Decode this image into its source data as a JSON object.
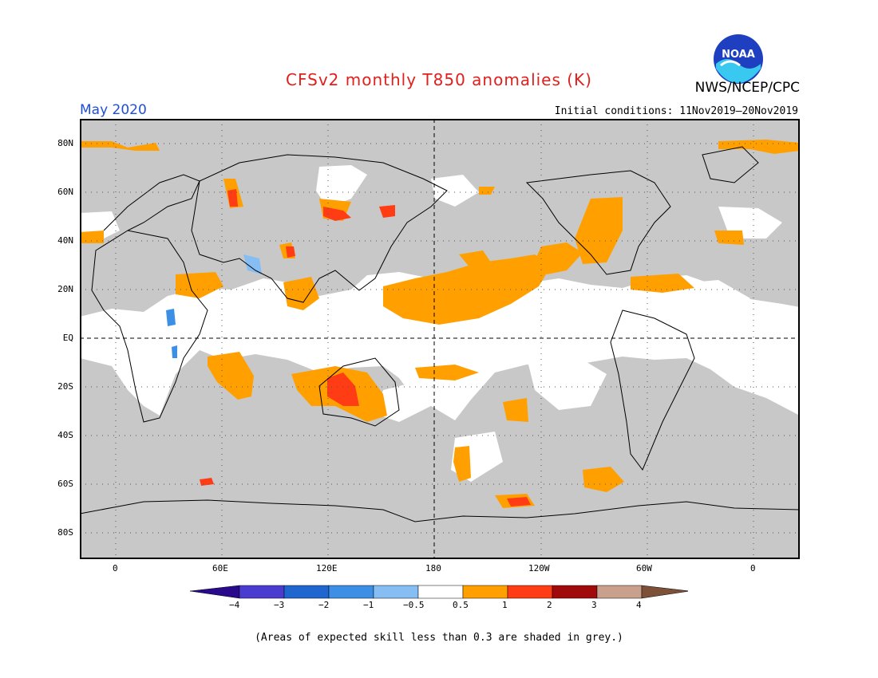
{
  "title": "CFSv2 monthly T850 anomalies (K)",
  "agency": "NWS/NCEP/CPC",
  "logo_text": "NOAA",
  "period": "May 2020",
  "initial_conditions": "Initial conditions: 11Nov2019—20Nov2019",
  "lat_labels": [
    "80N",
    "60N",
    "40N",
    "20N",
    "EQ",
    "20S",
    "40S",
    "60S",
    "80S"
  ],
  "lon_labels": [
    "0",
    "60E",
    "120E",
    "180",
    "120W",
    "60W",
    "0"
  ],
  "colorbar": {
    "labels": [
      "−4",
      "−3",
      "−2",
      "−1",
      "−0.5",
      "0.5",
      "1",
      "2",
      "3",
      "4"
    ],
    "colors": [
      "#2a0a8c",
      "#4a3ccf",
      "#1f66cf",
      "#3d8fe6",
      "#86bdf2",
      "#ffffff",
      "#ffa000",
      "#ff3c14",
      "#a00a0a",
      "#c8a08c",
      "#7d5038"
    ]
  },
  "colors": {
    "land_grey": "#c8c8c8",
    "warm_1": "#ffa000",
    "warm_2": "#ff3c14",
    "cool_1": "#3d8fe6",
    "cool_2": "#86bdf2"
  },
  "note": "(Areas of expected skill less than 0.3 are shaded in grey.)"
}
